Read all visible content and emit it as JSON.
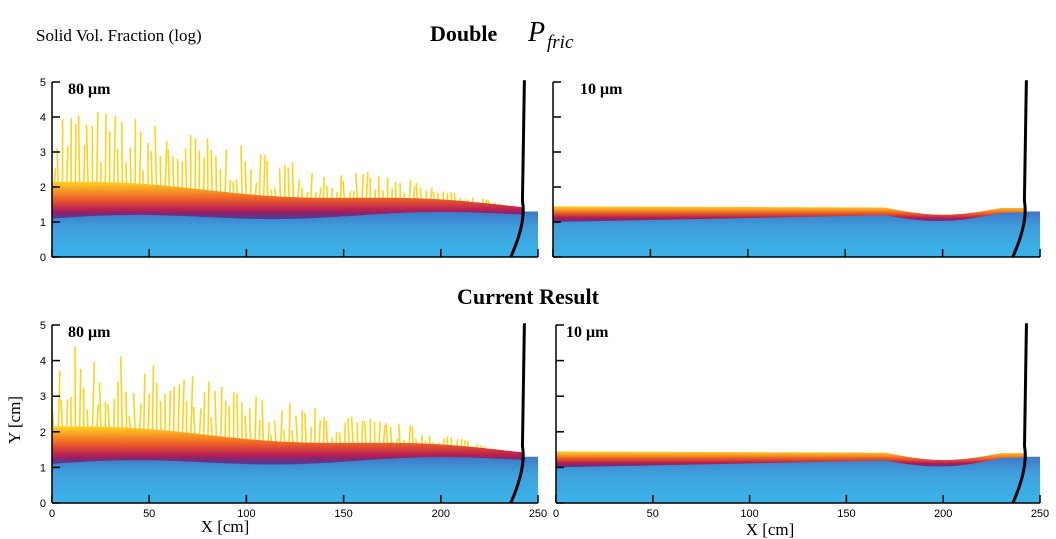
{
  "header": {
    "left_title": "Solid Vol. Fraction (log)"
  },
  "rows": [
    {
      "title": "Double",
      "title_symbol": "P",
      "title_subscript": "fric"
    },
    {
      "title": "Current Result"
    }
  ],
  "axes": {
    "xlabel": "X [cm]",
    "ylabel": "Y [cm]",
    "xlim": [
      0,
      250
    ],
    "ylim": [
      0,
      5
    ],
    "xticks": [
      0,
      50,
      100,
      150,
      200,
      250
    ],
    "yticks": [
      0,
      1,
      2,
      3,
      4,
      5
    ]
  },
  "panels": [
    {
      "label": "80 μm"
    },
    {
      "label": "10 μm"
    },
    {
      "label": "80 μm"
    },
    {
      "label": "10 μm"
    }
  ]
}
